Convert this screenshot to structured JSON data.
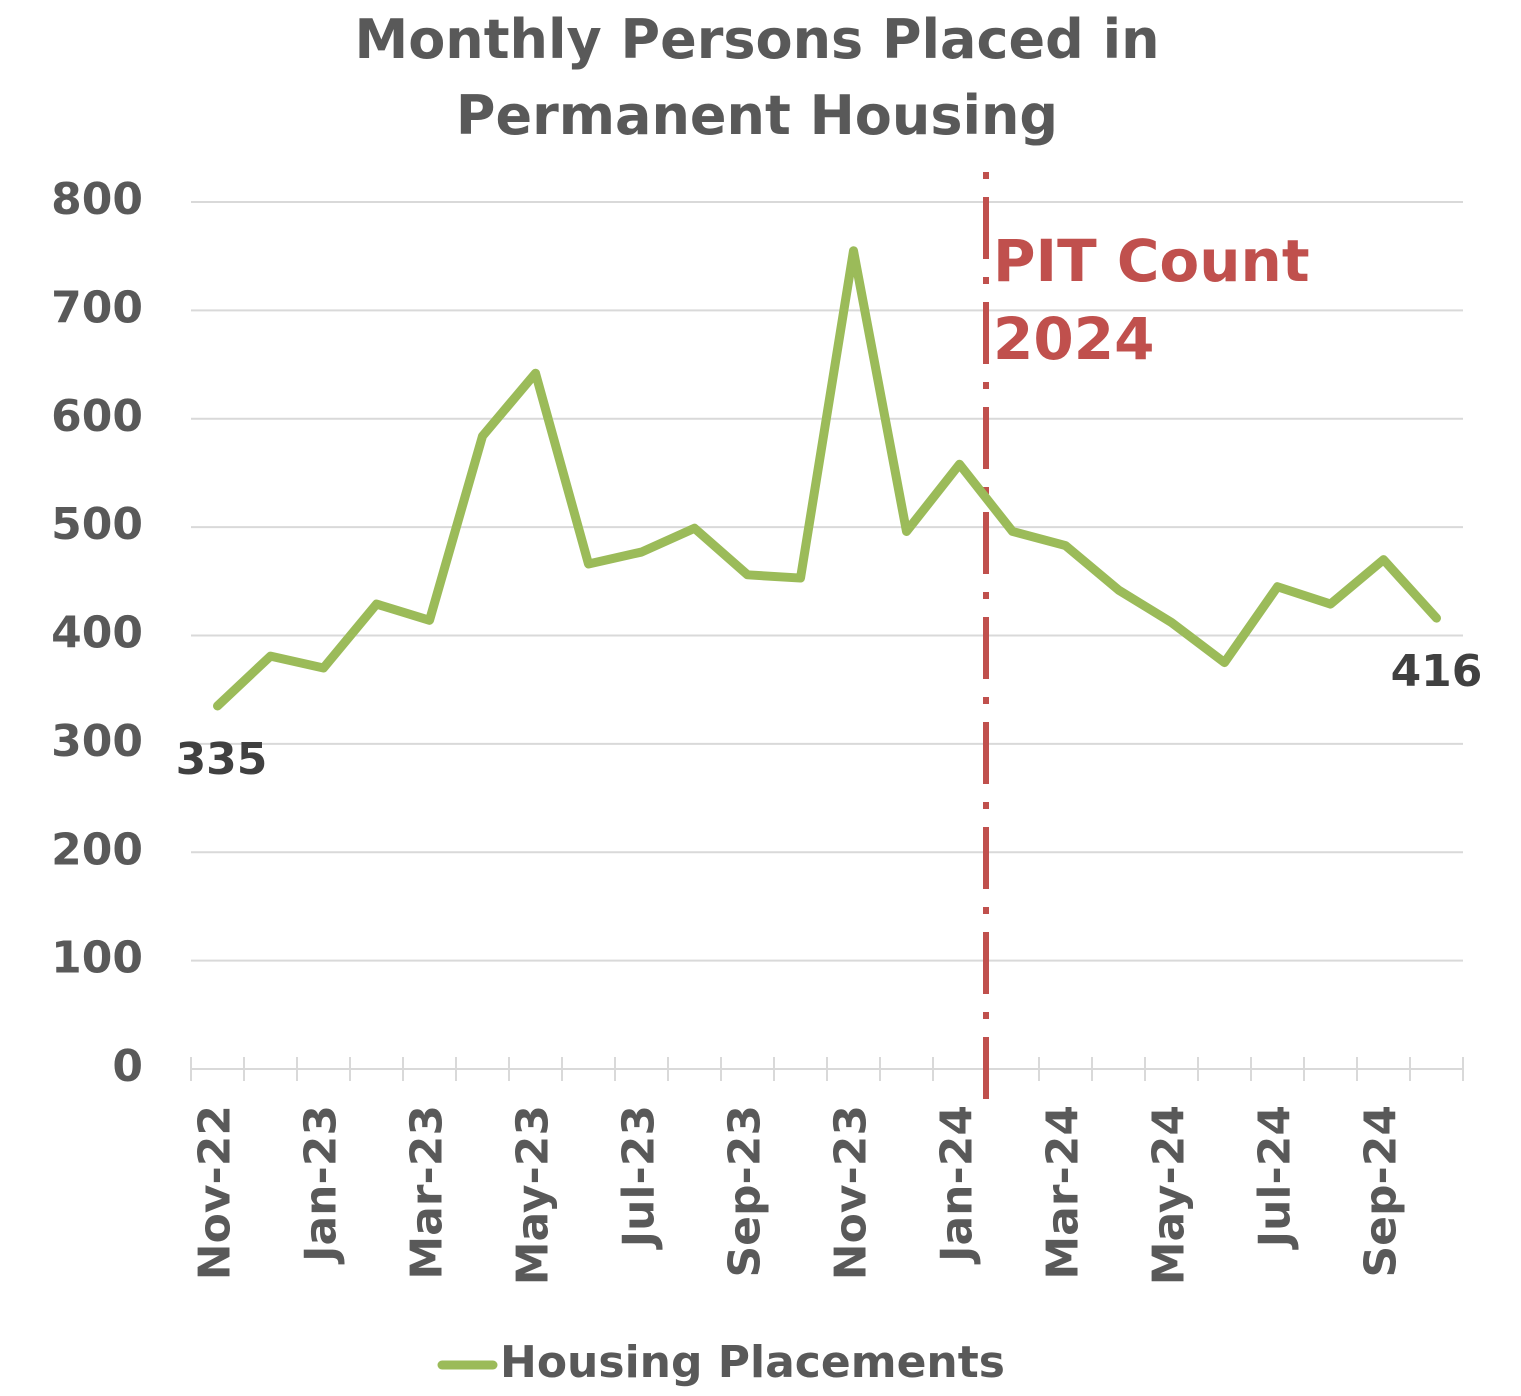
{
  "chart_data": {
    "type": "line",
    "title": "Monthly Persons Placed in Permanent Housing",
    "categories": [
      "Nov-22",
      null,
      "Jan-23",
      null,
      "Mar-23",
      null,
      "May-23",
      null,
      "Jul-23",
      null,
      "Sep-23",
      null,
      "Nov-23",
      null,
      "Jan-24",
      null,
      "Mar-24",
      null,
      "May-24",
      null,
      "Jul-24",
      null,
      "Sep-24",
      null
    ],
    "series": [
      {
        "name": "Housing Placements",
        "color": "#9bbb59",
        "values": [
          335,
          381,
          370,
          429,
          414,
          584,
          642,
          466,
          477,
          499,
          456,
          453,
          755,
          496,
          558,
          496,
          483,
          442,
          412,
          375,
          445,
          429,
          470,
          416
        ]
      }
    ],
    "ylim": [
      0,
      800
    ],
    "yticks": [
      0,
      100,
      200,
      300,
      400,
      500,
      600,
      700,
      800
    ],
    "grid": true,
    "data_labels": "first-last",
    "annotation": {
      "text": "PIT Count 2024",
      "color": "#c0504d"
    },
    "legend": "bottom"
  }
}
